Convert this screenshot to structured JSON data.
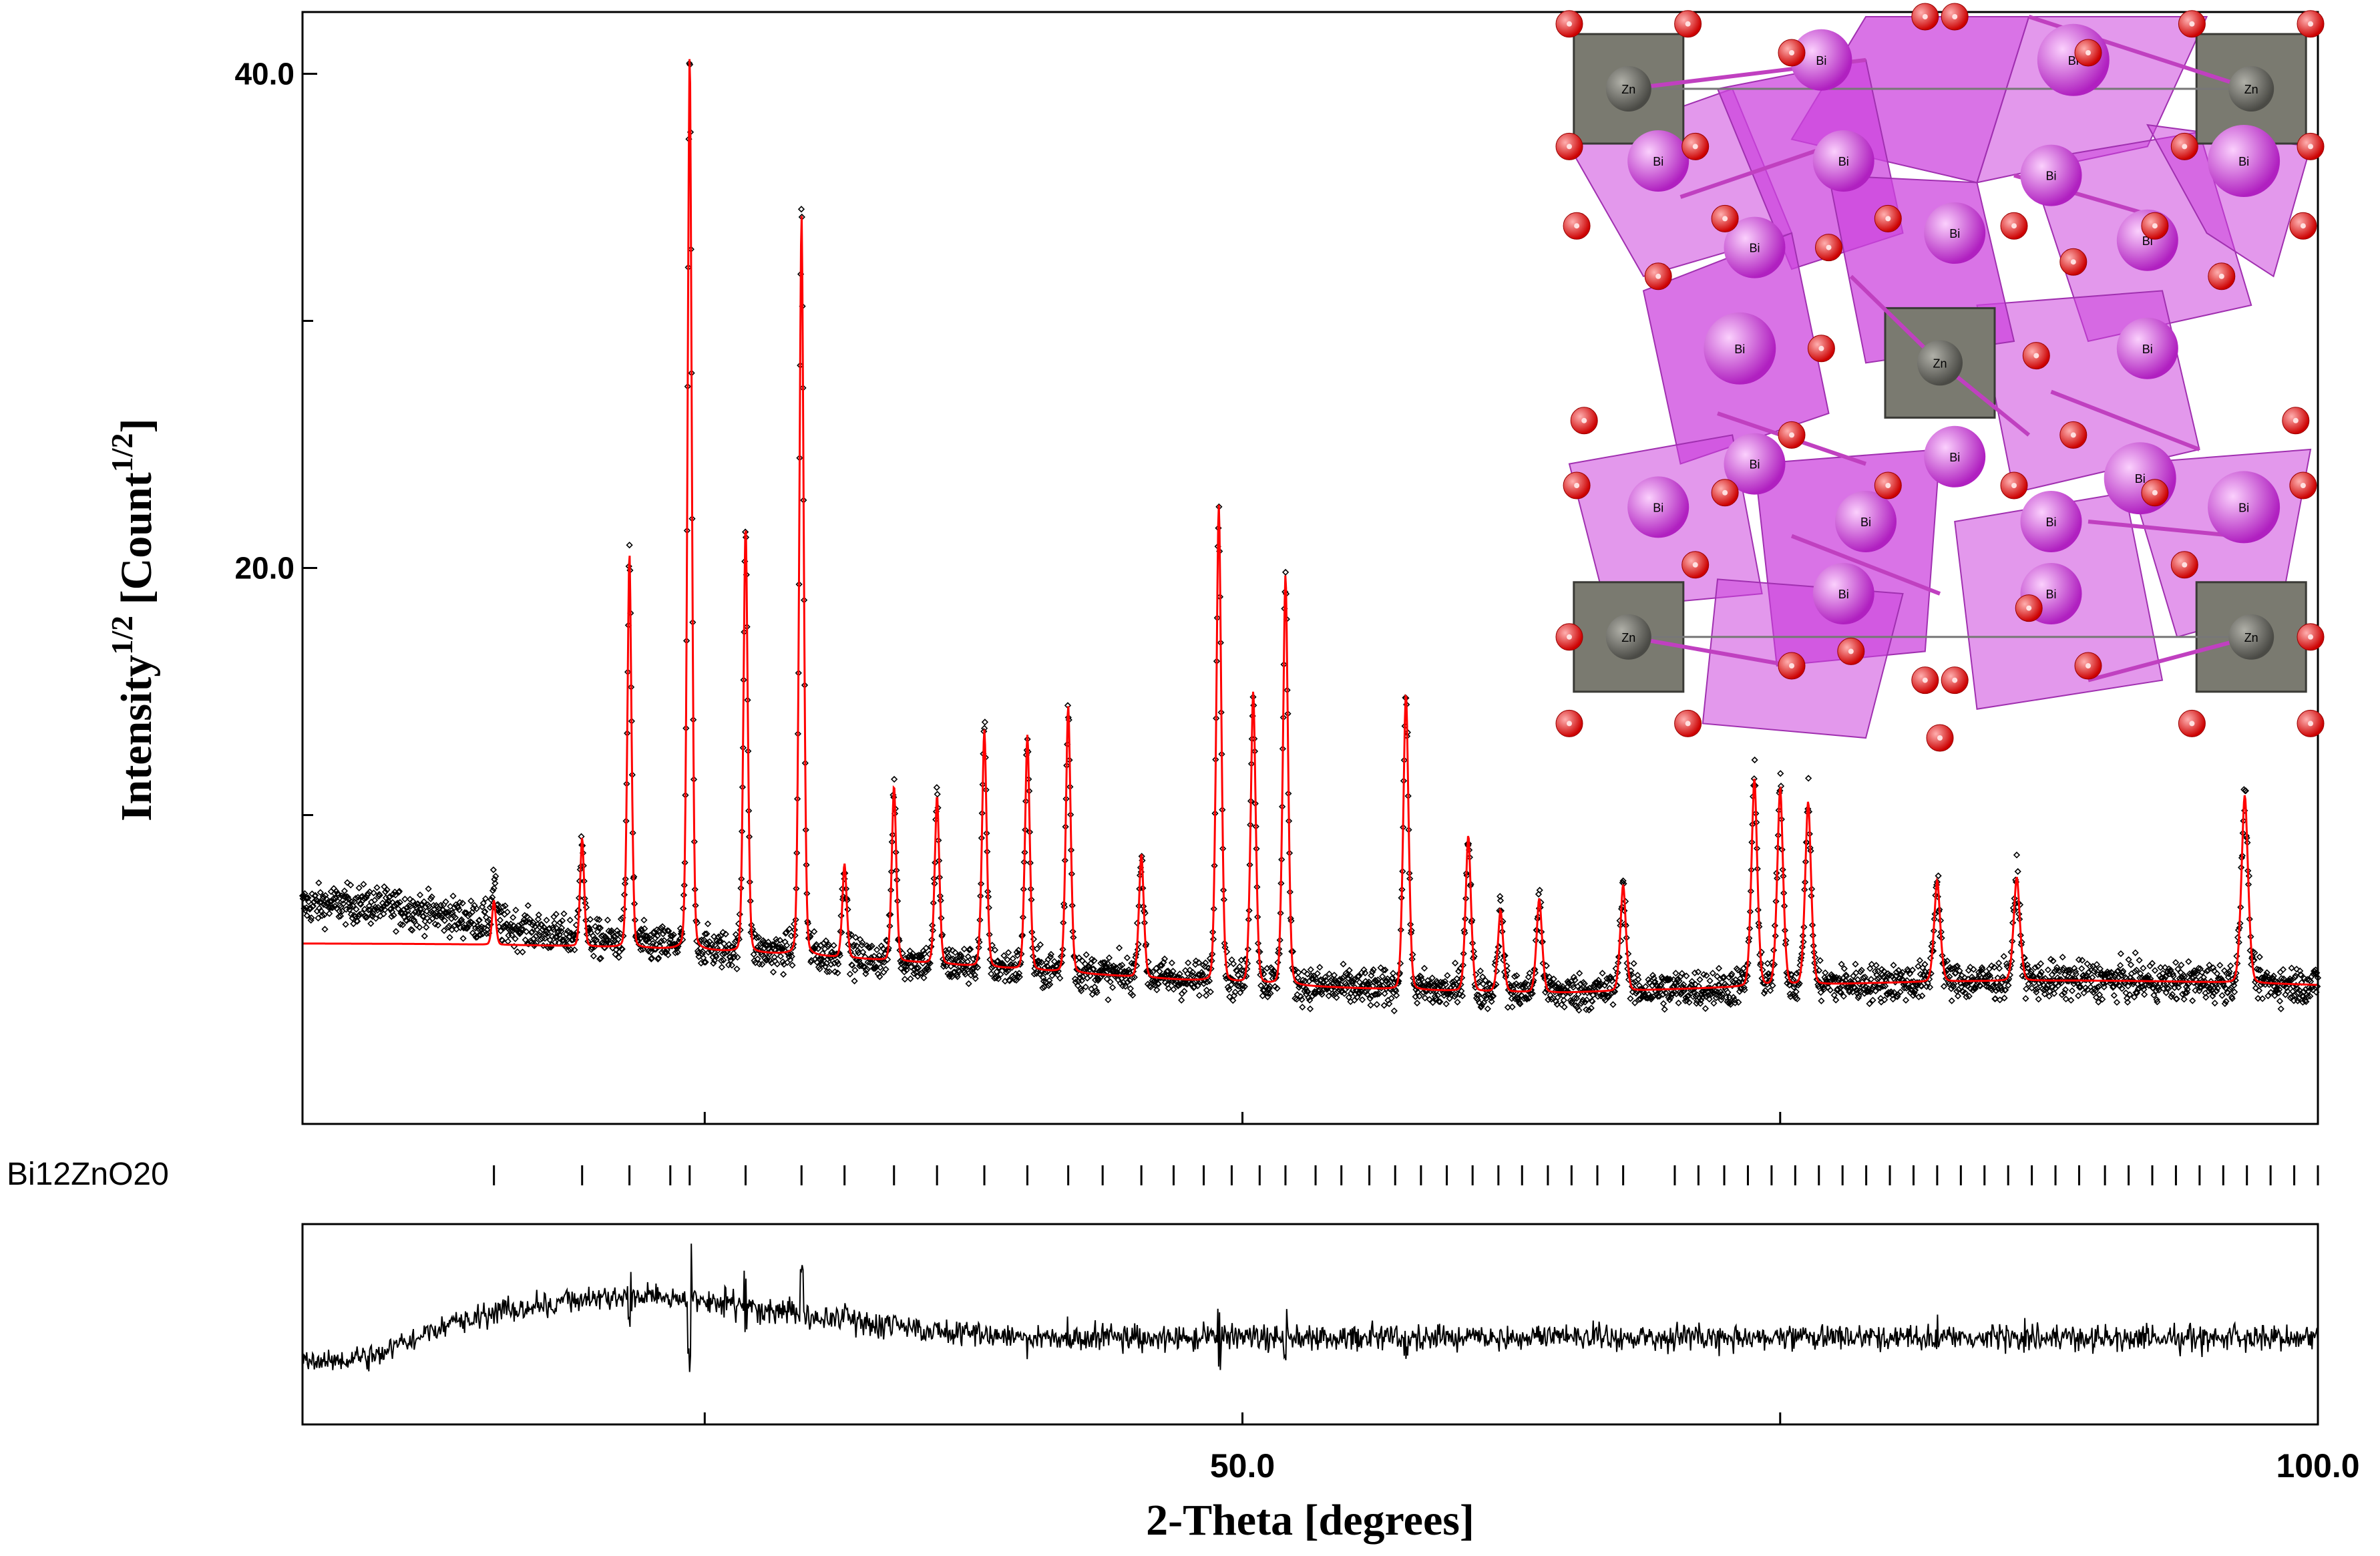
{
  "chart_data": {
    "type": "line",
    "title": "",
    "xlabel": "2-Theta [degrees]",
    "ylabel_main": "Intensity",
    "ylabel_sup1": "1/2",
    "ylabel_unit": " [Count",
    "ylabel_sup2": "1/2",
    "ylabel_close": "]",
    "xlim": [
      6.3,
      100.0
    ],
    "ylim": [
      -2.5,
      42.5
    ],
    "x_ticks": [
      50.0,
      100.0
    ],
    "x_tick_labels": [
      "50.0",
      "100.0"
    ],
    "x_minor_ticks": [
      25.0,
      75.0
    ],
    "y_ticks": [
      20.0,
      40.0
    ],
    "y_tick_labels": [
      "20.0",
      "40.0"
    ],
    "y_minor_ticks": [
      10.0,
      30.0
    ],
    "background": {
      "start": 4.8,
      "end": 3.0
    },
    "peaks": [
      {
        "x": 15.2,
        "y": 5.0
      },
      {
        "x": 19.3,
        "y": 7.6
      },
      {
        "x": 21.5,
        "y": 19.2
      },
      {
        "x": 24.3,
        "y": 39.5
      },
      {
        "x": 26.9,
        "y": 20.5
      },
      {
        "x": 29.5,
        "y": 33.2
      },
      {
        "x": 31.5,
        "y": 7.0
      },
      {
        "x": 33.8,
        "y": 10.3
      },
      {
        "x": 35.8,
        "y": 10.0
      },
      {
        "x": 38.0,
        "y": 12.8
      },
      {
        "x": 40.0,
        "y": 12.7
      },
      {
        "x": 41.9,
        "y": 14.0
      },
      {
        "x": 45.3,
        "y": 8.2
      },
      {
        "x": 48.9,
        "y": 22.5
      },
      {
        "x": 50.5,
        "y": 15.0
      },
      {
        "x": 52.0,
        "y": 19.8
      },
      {
        "x": 57.6,
        "y": 15.2
      },
      {
        "x": 60.5,
        "y": 9.5
      },
      {
        "x": 62.0,
        "y": 6.5
      },
      {
        "x": 63.8,
        "y": 7.0
      },
      {
        "x": 67.7,
        "y": 7.5
      },
      {
        "x": 73.8,
        "y": 11.6
      },
      {
        "x": 75.0,
        "y": 11.2
      },
      {
        "x": 76.3,
        "y": 10.6
      },
      {
        "x": 82.3,
        "y": 7.3
      },
      {
        "x": 86.0,
        "y": 7.4
      },
      {
        "x": 96.6,
        "y": 10.8
      }
    ],
    "phase_label": "Bi12ZnO20",
    "phase_color": "#2e8b2e",
    "reflection_positions": [
      15.2,
      19.3,
      21.5,
      23.4,
      24.3,
      26.9,
      29.5,
      31.5,
      33.8,
      35.8,
      38.0,
      40.0,
      41.9,
      43.5,
      45.3,
      46.8,
      48.2,
      49.5,
      50.8,
      52.0,
      53.4,
      54.6,
      55.9,
      57.1,
      58.3,
      59.5,
      60.7,
      61.9,
      63.0,
      64.2,
      65.3,
      66.5,
      67.7,
      70.1,
      71.2,
      72.4,
      73.5,
      74.6,
      75.7,
      76.8,
      77.9,
      79.0,
      80.1,
      81.2,
      82.3,
      83.4,
      84.5,
      85.6,
      86.7,
      87.8,
      88.9,
      90.1,
      91.2,
      92.3,
      93.4,
      94.5,
      95.6,
      96.7,
      97.8,
      98.9,
      100.0
    ],
    "observed_color": "#000000",
    "calculated_color": "#ff0000",
    "inset": {
      "type": "crystal-structure",
      "atom_labels": {
        "bi": "Bi",
        "zn": "Zn"
      },
      "colors": {
        "bi": "#e060e8",
        "o": "#e01010",
        "zn": "#5a5a55",
        "bi_poly": "#cc44dd",
        "zn_poly": "#7a7a70"
      }
    }
  }
}
